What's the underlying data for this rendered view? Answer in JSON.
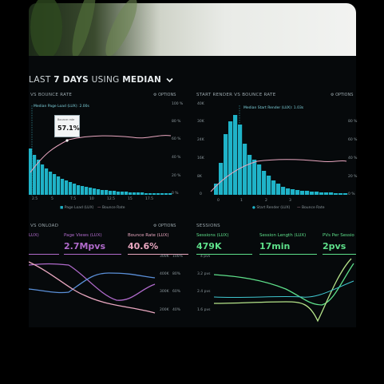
{
  "colors": {
    "cyan": "#1fb3c8",
    "pink": "#e9a7c0",
    "purple": "#b06acb",
    "green": "#5ee08a",
    "teal": "#3fc6cf",
    "white": "#e7ecee"
  },
  "header": {
    "title_prefix": "LAST ",
    "title_bold": "7 DAYS",
    "title_mid": " USING ",
    "title_mode": "MEDIAN",
    "chevron": "chevron-down-icon"
  },
  "left_panel": {
    "heading": "VS BOUNCE RATE",
    "options": "OPTIONS",
    "legend_top": "Median Page Load (LUX): 2.00s",
    "tooltip_label": "Bounce rate",
    "tooltip_value": "57.1%",
    "y_right": [
      "100 %",
      "80 %",
      "60 %",
      "40 %",
      "20 %",
      "0 %"
    ],
    "x_ticks": [
      "2.5",
      "5",
      "7.5",
      "10",
      "12.5",
      "15",
      "17.5"
    ],
    "legend": [
      "Page Load (LUX)",
      "Bounce Rate"
    ]
  },
  "right_panel": {
    "heading": "START RENDER VS BOUNCE RATE",
    "options": "OPTIONS",
    "legend_top": "Median Start Render (LUX): 1.03s",
    "y_left": [
      "40K",
      "30K",
      "24K",
      "16K",
      "8K",
      "0"
    ],
    "y_right": [
      "80 %",
      "60 %",
      "40 %",
      "20 %",
      "0 %"
    ],
    "x_ticks": [
      "0",
      "1",
      "2",
      "3"
    ],
    "legend": [
      "Start Render (LUX)",
      "Bounce Rate"
    ]
  },
  "bottom_left": {
    "heading": "VS ONLOAD",
    "options": "OPTIONS",
    "metrics": [
      {
        "label": "LUX)",
        "value": ""
      },
      {
        "label": "Page Views (LUX)",
        "value": "2.7Mpvs"
      },
      {
        "label": "Bounce Rate (LUX)",
        "value": "40.6%"
      }
    ],
    "y_mid": [
      "300K",
      "400K",
      "300K",
      "200K"
    ],
    "y_right": [
      "100%",
      "80%",
      "60%",
      "40%"
    ]
  },
  "bottom_right": {
    "heading": "SESSIONS",
    "metrics": [
      {
        "label": "Sessions (LUX)",
        "value": "479K"
      },
      {
        "label": "Session Length (LUX)",
        "value": "17min"
      },
      {
        "label": "PVs Per Sessio",
        "value": "2pvs"
      }
    ],
    "y_left": [
      "4 pvs",
      "3.2 pvs",
      "2.4 pvs",
      "1.6 pvs"
    ]
  }
}
